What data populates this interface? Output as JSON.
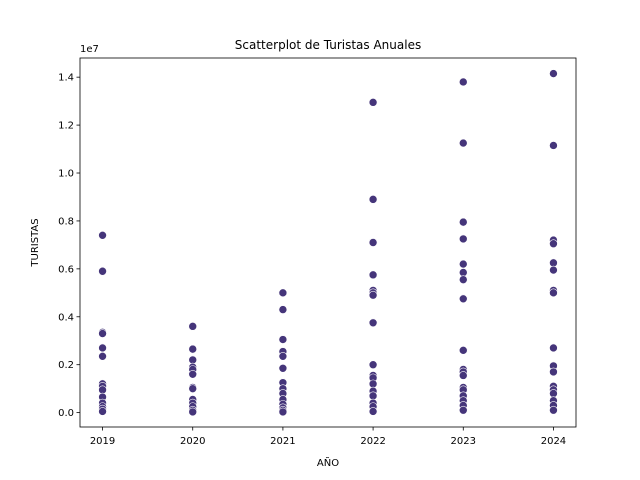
{
  "chart_data": {
    "type": "scatter",
    "title": "Scatterplot de Turistas Anuales",
    "xlabel": "AÑO",
    "ylabel": "TURISTAS",
    "y_offset_label": "1e7",
    "y_scale": 10000000,
    "xlim": [
      2018.75,
      2024.25
    ],
    "ylim": [
      -600000,
      14800000
    ],
    "x_ticks": [
      2019,
      2020,
      2021,
      2022,
      2023,
      2024
    ],
    "y_ticks": [
      0,
      2000000,
      4000000,
      6000000,
      8000000,
      10000000,
      12000000,
      14000000
    ],
    "y_tick_labels": [
      "0.0",
      "0.2",
      "0.4",
      "0.6",
      "0.8",
      "1.0",
      "1.2",
      "1.4"
    ],
    "grid": false,
    "marker_color": "#45357a",
    "points": [
      {
        "x": 2019,
        "y": 7400000
      },
      {
        "x": 2019,
        "y": 5900000
      },
      {
        "x": 2019,
        "y": 3350000
      },
      {
        "x": 2019,
        "y": 3300000
      },
      {
        "x": 2019,
        "y": 2700000
      },
      {
        "x": 2019,
        "y": 2350000
      },
      {
        "x": 2019,
        "y": 1200000
      },
      {
        "x": 2019,
        "y": 1100000
      },
      {
        "x": 2019,
        "y": 950000
      },
      {
        "x": 2019,
        "y": 650000
      },
      {
        "x": 2019,
        "y": 400000
      },
      {
        "x": 2019,
        "y": 250000
      },
      {
        "x": 2019,
        "y": 150000
      },
      {
        "x": 2019,
        "y": 50000
      },
      {
        "x": 2020,
        "y": 3600000
      },
      {
        "x": 2020,
        "y": 2650000
      },
      {
        "x": 2020,
        "y": 2200000
      },
      {
        "x": 2020,
        "y": 1900000
      },
      {
        "x": 2020,
        "y": 1800000
      },
      {
        "x": 2020,
        "y": 1600000
      },
      {
        "x": 2020,
        "y": 1050000
      },
      {
        "x": 2020,
        "y": 1000000
      },
      {
        "x": 2020,
        "y": 550000
      },
      {
        "x": 2020,
        "y": 400000
      },
      {
        "x": 2020,
        "y": 250000
      },
      {
        "x": 2020,
        "y": 100000
      },
      {
        "x": 2020,
        "y": 30000
      },
      {
        "x": 2021,
        "y": 5000000
      },
      {
        "x": 2021,
        "y": 4300000
      },
      {
        "x": 2021,
        "y": 3050000
      },
      {
        "x": 2021,
        "y": 2550000
      },
      {
        "x": 2021,
        "y": 2350000
      },
      {
        "x": 2021,
        "y": 1850000
      },
      {
        "x": 2021,
        "y": 1250000
      },
      {
        "x": 2021,
        "y": 1000000
      },
      {
        "x": 2021,
        "y": 800000
      },
      {
        "x": 2021,
        "y": 550000
      },
      {
        "x": 2021,
        "y": 350000
      },
      {
        "x": 2021,
        "y": 200000
      },
      {
        "x": 2021,
        "y": 100000
      },
      {
        "x": 2021,
        "y": 30000
      },
      {
        "x": 2022,
        "y": 12950000
      },
      {
        "x": 2022,
        "y": 8900000
      },
      {
        "x": 2022,
        "y": 7100000
      },
      {
        "x": 2022,
        "y": 5750000
      },
      {
        "x": 2022,
        "y": 5100000
      },
      {
        "x": 2022,
        "y": 5000000
      },
      {
        "x": 2022,
        "y": 4900000
      },
      {
        "x": 2022,
        "y": 3750000
      },
      {
        "x": 2022,
        "y": 2000000
      },
      {
        "x": 2022,
        "y": 1550000
      },
      {
        "x": 2022,
        "y": 1450000
      },
      {
        "x": 2022,
        "y": 1200000
      },
      {
        "x": 2022,
        "y": 900000
      },
      {
        "x": 2022,
        "y": 700000
      },
      {
        "x": 2022,
        "y": 400000
      },
      {
        "x": 2022,
        "y": 250000
      },
      {
        "x": 2022,
        "y": 50000
      },
      {
        "x": 2023,
        "y": 13800000
      },
      {
        "x": 2023,
        "y": 11250000
      },
      {
        "x": 2023,
        "y": 7950000
      },
      {
        "x": 2023,
        "y": 7250000
      },
      {
        "x": 2023,
        "y": 6200000
      },
      {
        "x": 2023,
        "y": 5850000
      },
      {
        "x": 2023,
        "y": 5550000
      },
      {
        "x": 2023,
        "y": 4750000
      },
      {
        "x": 2023,
        "y": 2600000
      },
      {
        "x": 2023,
        "y": 1800000
      },
      {
        "x": 2023,
        "y": 1700000
      },
      {
        "x": 2023,
        "y": 1550000
      },
      {
        "x": 2023,
        "y": 1050000
      },
      {
        "x": 2023,
        "y": 950000
      },
      {
        "x": 2023,
        "y": 700000
      },
      {
        "x": 2023,
        "y": 500000
      },
      {
        "x": 2023,
        "y": 300000
      },
      {
        "x": 2023,
        "y": 100000
      },
      {
        "x": 2024,
        "y": 14150000
      },
      {
        "x": 2024,
        "y": 11150000
      },
      {
        "x": 2024,
        "y": 7200000
      },
      {
        "x": 2024,
        "y": 7050000
      },
      {
        "x": 2024,
        "y": 6250000
      },
      {
        "x": 2024,
        "y": 5950000
      },
      {
        "x": 2024,
        "y": 5100000
      },
      {
        "x": 2024,
        "y": 5000000
      },
      {
        "x": 2024,
        "y": 2700000
      },
      {
        "x": 2024,
        "y": 1950000
      },
      {
        "x": 2024,
        "y": 1700000
      },
      {
        "x": 2024,
        "y": 1100000
      },
      {
        "x": 2024,
        "y": 950000
      },
      {
        "x": 2024,
        "y": 800000
      },
      {
        "x": 2024,
        "y": 500000
      },
      {
        "x": 2024,
        "y": 300000
      },
      {
        "x": 2024,
        "y": 100000
      }
    ]
  }
}
